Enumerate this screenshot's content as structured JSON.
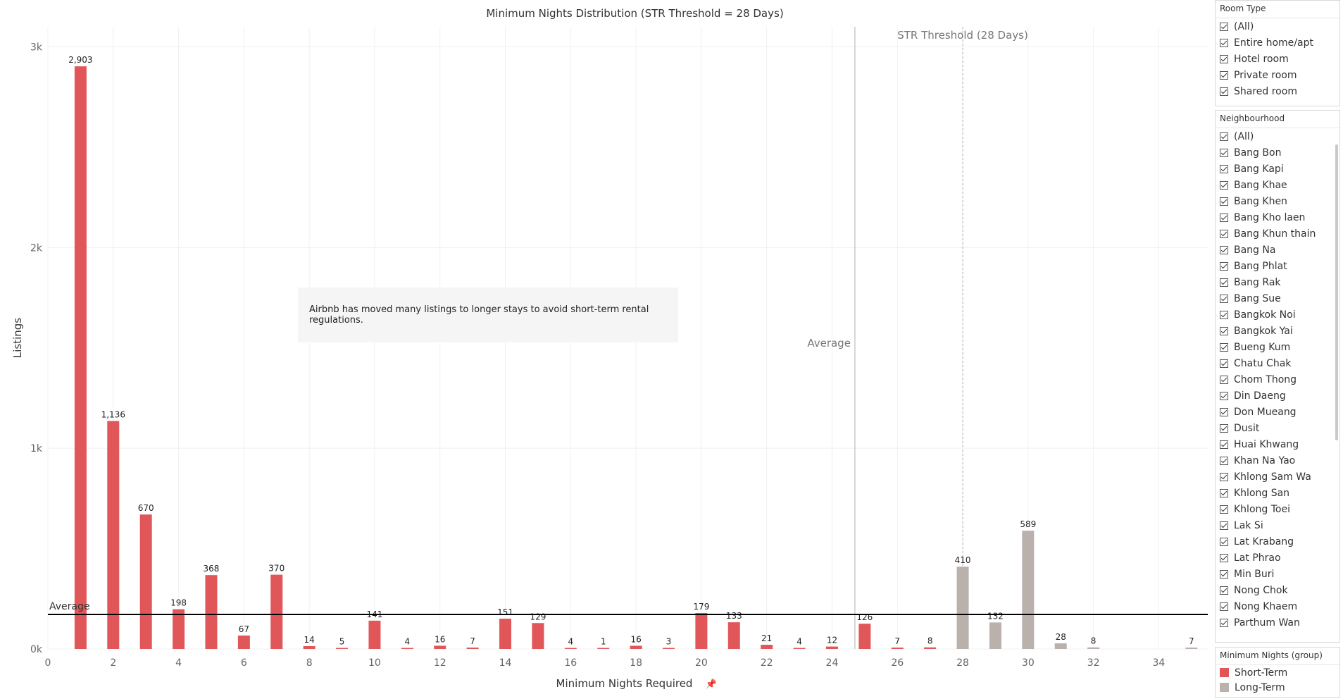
{
  "chart_data": {
    "type": "bar",
    "title": "Minimum Nights Distribution (STR Threshold = 28 Days)",
    "xlabel": "Minimum Nights Required",
    "ylabel": "Listings",
    "xlim": [
      0,
      35.5
    ],
    "ylim": [
      0,
      3100
    ],
    "x_ticks": [
      0,
      2,
      4,
      6,
      8,
      10,
      12,
      14,
      16,
      18,
      20,
      22,
      24,
      26,
      28,
      30,
      32,
      34
    ],
    "y_ticks": [
      {
        "value": 0,
        "label": "0k"
      },
      {
        "value": 1000,
        "label": "1k"
      },
      {
        "value": 2000,
        "label": "2k"
      },
      {
        "value": 3000,
        "label": "3k"
      }
    ],
    "grid": true,
    "series": [
      {
        "name": "Short-Term",
        "color": "#e15759",
        "points": [
          {
            "x": 1,
            "y": 2903,
            "label": "2,903"
          },
          {
            "x": 2,
            "y": 1136,
            "label": "1,136"
          },
          {
            "x": 3,
            "y": 670,
            "label": "670"
          },
          {
            "x": 4,
            "y": 198,
            "label": "198"
          },
          {
            "x": 5,
            "y": 368,
            "label": "368"
          },
          {
            "x": 6,
            "y": 67,
            "label": "67"
          },
          {
            "x": 7,
            "y": 370,
            "label": "370"
          },
          {
            "x": 8,
            "y": 14,
            "label": "14"
          },
          {
            "x": 9,
            "y": 5,
            "label": "5"
          },
          {
            "x": 10,
            "y": 141,
            "label": "141"
          },
          {
            "x": 11,
            "y": 4,
            "label": "4"
          },
          {
            "x": 12,
            "y": 16,
            "label": "16"
          },
          {
            "x": 13,
            "y": 7,
            "label": "7"
          },
          {
            "x": 14,
            "y": 151,
            "label": "151"
          },
          {
            "x": 15,
            "y": 129,
            "label": "129"
          },
          {
            "x": 16,
            "y": 4,
            "label": "4"
          },
          {
            "x": 17,
            "y": 1,
            "label": "1"
          },
          {
            "x": 18,
            "y": 16,
            "label": "16"
          },
          {
            "x": 19,
            "y": 3,
            "label": "3"
          },
          {
            "x": 20,
            "y": 179,
            "label": "179"
          },
          {
            "x": 21,
            "y": 133,
            "label": "133"
          },
          {
            "x": 22,
            "y": 21,
            "label": "21"
          },
          {
            "x": 23,
            "y": 4,
            "label": "4"
          },
          {
            "x": 24,
            "y": 12,
            "label": "12"
          },
          {
            "x": 25,
            "y": 126,
            "label": "126"
          },
          {
            "x": 26,
            "y": 7,
            "label": "7"
          },
          {
            "x": 27,
            "y": 8,
            "label": "8"
          }
        ]
      },
      {
        "name": "Long-Term",
        "color": "#bab0ac",
        "points": [
          {
            "x": 28,
            "y": 410,
            "label": "410"
          },
          {
            "x": 29,
            "y": 132,
            "label": "132"
          },
          {
            "x": 30,
            "y": 589,
            "label": "589"
          },
          {
            "x": 31,
            "y": 28,
            "label": "28"
          },
          {
            "x": 32,
            "y": 8,
            "label": "8"
          },
          {
            "x": 35,
            "y": 7,
            "label": "7"
          }
        ]
      }
    ],
    "reference_lines": [
      {
        "axis": "y",
        "value": 172,
        "label": "Average",
        "style": "solid",
        "color": "#000000"
      },
      {
        "axis": "x",
        "value": 24.7,
        "label": "Average",
        "style": "solid",
        "color": "#bdbdbd"
      },
      {
        "axis": "x",
        "value": 28,
        "label": "STR Threshold (28 Days)",
        "style": "dotted",
        "color": "#bdbdbd"
      }
    ],
    "annotation": "Airbnb has moved many listings to longer stays to avoid short-term rental regulations."
  },
  "filters": {
    "room_type": {
      "title": "Room Type",
      "items": [
        "(All)",
        "Entire home/apt",
        "Hotel room",
        "Private room",
        "Shared room"
      ]
    },
    "neighbourhood": {
      "title": "Neighbourhood",
      "items": [
        "(All)",
        "Bang Bon",
        "Bang Kapi",
        "Bang Khae",
        "Bang Khen",
        "Bang Kho laen",
        "Bang Khun thain",
        "Bang Na",
        "Bang Phlat",
        "Bang Rak",
        "Bang Sue",
        "Bangkok Noi",
        "Bangkok Yai",
        "Bueng Kum",
        "Chatu Chak",
        "Chom Thong",
        "Din Daeng",
        "Don Mueang",
        "Dusit",
        "Huai Khwang",
        "Khan Na Yao",
        "Khlong Sam Wa",
        "Khlong San",
        "Khlong Toei",
        "Lak Si",
        "Lat Krabang",
        "Lat Phrao",
        "Min Buri",
        "Nong Chok",
        "Nong Khaem",
        "Parthum Wan"
      ]
    }
  },
  "legend": {
    "title": "Minimum Nights (group)",
    "items": [
      {
        "label": "Short-Term",
        "color": "#e15759"
      },
      {
        "label": "Long-Term",
        "color": "#bab0ac"
      }
    ]
  }
}
